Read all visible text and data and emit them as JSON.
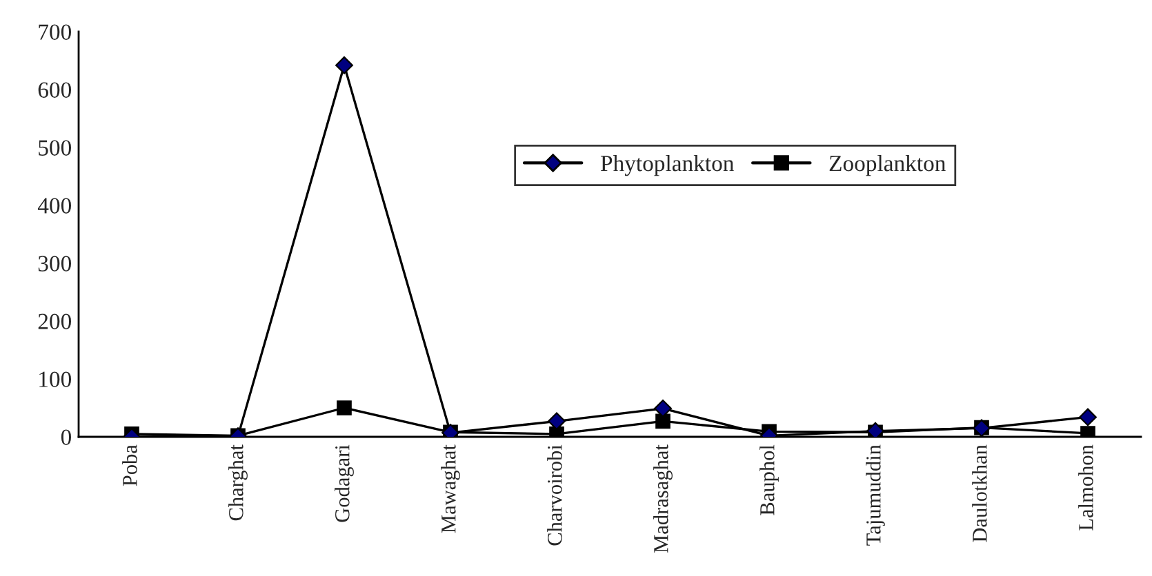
{
  "chart_data": {
    "type": "line",
    "categories": [
      "Poba",
      "Charghat",
      "Godagari",
      "Mawaghat",
      "Charvoirobi",
      "Madrasaghat",
      "Bauphol",
      "Tajumuddin",
      "Daulotkhan",
      "Lalmohon"
    ],
    "series": [
      {
        "name": "Phytoplankton",
        "color": "#000080",
        "marker": "diamond",
        "values": [
          0,
          1,
          642,
          7,
          27,
          49,
          2,
          10,
          15,
          34
        ]
      },
      {
        "name": "Zooplankton",
        "color": "#000000",
        "marker": "square",
        "values": [
          5,
          2,
          50,
          8,
          5,
          27,
          9,
          8,
          16,
          6
        ]
      }
    ],
    "ylim": [
      0,
      700
    ],
    "yticks": [
      0,
      100,
      200,
      300,
      400,
      500,
      600,
      700
    ],
    "grid": false,
    "legend": "right",
    "line_style": "solid"
  }
}
